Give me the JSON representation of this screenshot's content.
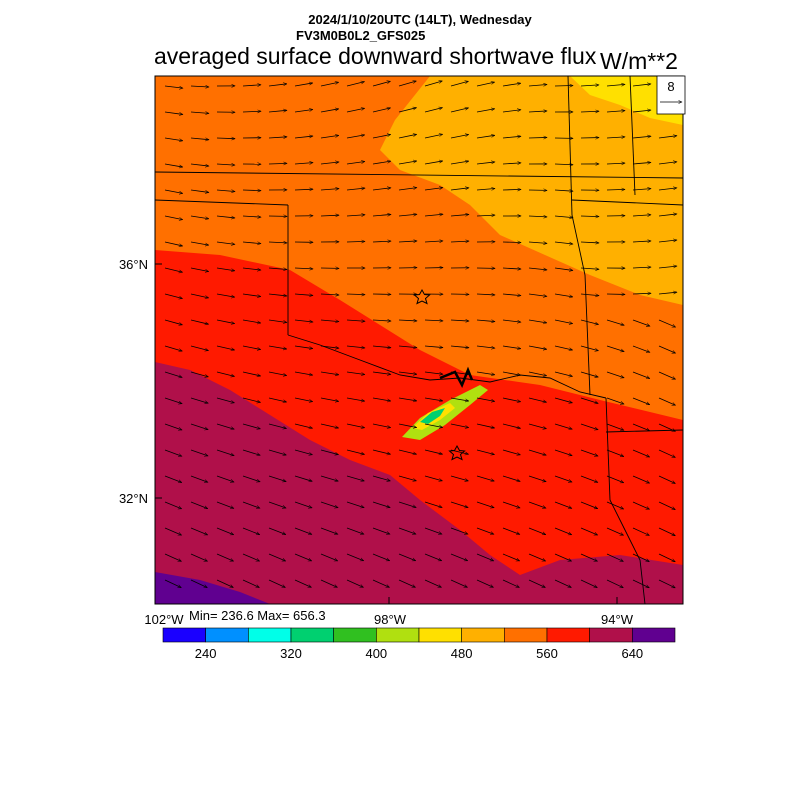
{
  "header": {
    "datetime": "2024/1/10/20UTC (14LT), Wednesday",
    "model": "FV3M0B0L2_GFS025",
    "title": "averaged surface downward shortwave flux",
    "units": "W/m**2"
  },
  "map": {
    "lat_labels": [
      "36°N",
      "32°N"
    ],
    "lon_labels": [
      "102°W",
      "98°W",
      "94°W"
    ],
    "vector_ref_value": "8",
    "stats": "Min= 236.6 Max= 656.3",
    "markers": [
      "star",
      "star"
    ]
  },
  "colorbar": {
    "colors": [
      "#1a00ff",
      "#0090ff",
      "#00ffe8",
      "#00d070",
      "#30c020",
      "#b0e010",
      "#ffe000",
      "#ffb000",
      "#ff7000",
      "#ff1a00",
      "#b0104a",
      "#600090"
    ],
    "tick_labels": [
      "240",
      "320",
      "400",
      "480",
      "560",
      "640"
    ]
  }
}
